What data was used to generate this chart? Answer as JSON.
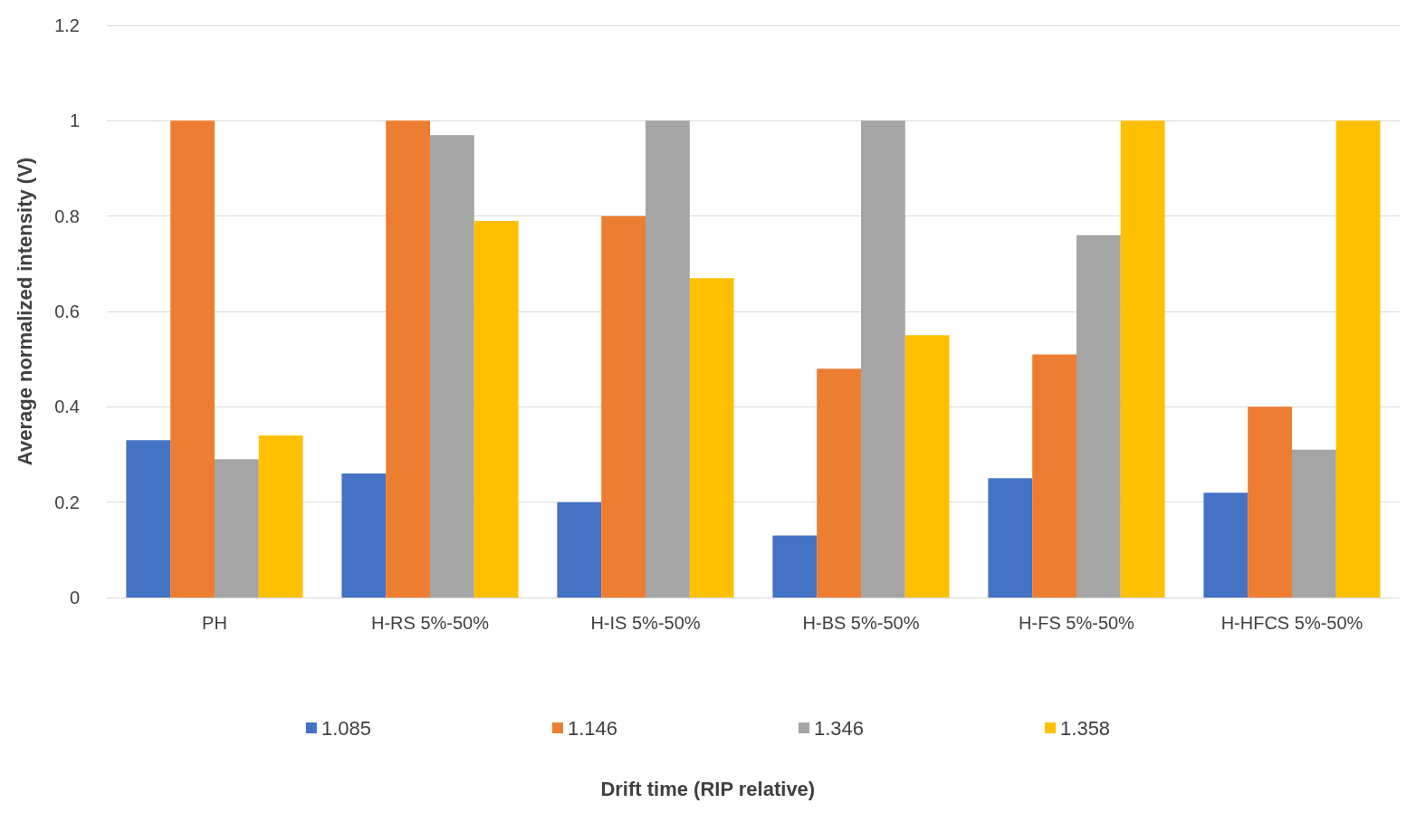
{
  "chart_data": {
    "type": "bar",
    "legend_title": "Drift time (RIP relative)",
    "ylabel": "Average normalized intensity (V)",
    "categories": [
      "PH",
      "H-RS 5%-50%",
      "H-IS 5%-50%",
      "H-BS 5%-50%",
      "H-FS 5%-50%",
      "H-HFCS 5%-50%"
    ],
    "series": [
      {
        "name": "1.085",
        "color": "#4472c4",
        "values": [
          0.33,
          0.26,
          0.2,
          0.13,
          0.25,
          0.22
        ]
      },
      {
        "name": "1.146",
        "color": "#ed7d31",
        "values": [
          1.0,
          1.0,
          0.8,
          0.48,
          0.51,
          0.4
        ]
      },
      {
        "name": "1.346",
        "color": "#a5a5a5",
        "values": [
          0.29,
          0.97,
          1.0,
          1.0,
          0.76,
          0.31
        ]
      },
      {
        "name": "1.358",
        "color": "#ffc000",
        "values": [
          0.34,
          0.79,
          0.67,
          0.55,
          1.0,
          1.0
        ]
      }
    ],
    "ylim": [
      0,
      1.2
    ],
    "yticks": [
      0,
      0.2,
      0.4,
      0.6,
      0.8,
      1,
      1.2
    ],
    "grid": "y",
    "legend": "bottom"
  }
}
